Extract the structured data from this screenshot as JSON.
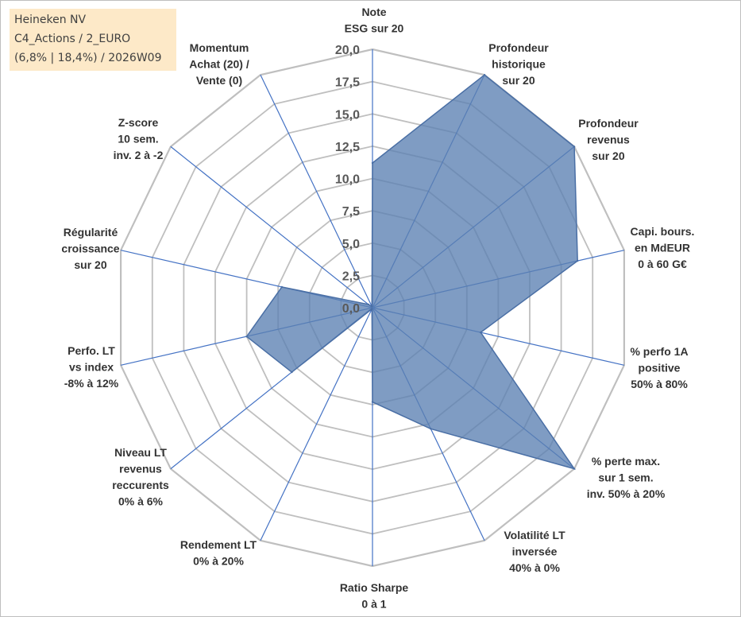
{
  "title_box": {
    "line1": "Heineken NV",
    "line2": "C4_Actions / 2_EURO",
    "line3": "(6,8% | 18,4%) / 2026W09"
  },
  "chart_data": {
    "type": "radar",
    "title": "Heineken NV",
    "range": [
      0,
      20
    ],
    "ticks": [
      "0,0",
      "2,5",
      "5,0",
      "7,5",
      "10,0",
      "12,5",
      "15,0",
      "17,5",
      "20,0"
    ],
    "tick_values": [
      0,
      2.5,
      5,
      7.5,
      10,
      12.5,
      15,
      17.5,
      20
    ],
    "axes": [
      {
        "label": [
          "Note",
          "ESG sur 20"
        ],
        "value": 11.2
      },
      {
        "label": [
          "Profondeur",
          "historique",
          "sur 20"
        ],
        "value": 20
      },
      {
        "label": [
          "Profondeur",
          "revenus",
          "sur 20"
        ],
        "value": 20
      },
      {
        "label": [
          "Capi. bours.",
          "en MdEUR",
          "0 à 60 G€"
        ],
        "value": 16.3
      },
      {
        "label": [
          "% perfo 1A",
          "positive",
          "50% à 80%"
        ],
        "value": 8.6
      },
      {
        "label": [
          "% perte max.",
          "sur 1 sem.",
          "inv. 50% à 20%"
        ],
        "value": 20
      },
      {
        "label": [
          "Volatilité LT",
          "inversée",
          "40% à 0%"
        ],
        "value": 10.4
      },
      {
        "label": [
          "Ratio Sharpe",
          "0 à 1"
        ],
        "value": 7.3
      },
      {
        "label": [
          "Rendement LT",
          "0% à 20%"
        ],
        "value": 0.1
      },
      {
        "label": [
          "Niveau LT",
          "revenus",
          "reccurents",
          "0% à 6%"
        ],
        "value": 8.0
      },
      {
        "label": [
          "Perfo. LT",
          "vs index",
          "-8% à 12%"
        ],
        "value": 10.0
      },
      {
        "label": [
          "Régularité",
          "croissance",
          "sur 20"
        ],
        "value": 7.2
      },
      {
        "label": [
          "Z-score",
          "10 sem.",
          "inv. 2 à -2"
        ],
        "value": 0.4
      },
      {
        "label": [
          "Momentum",
          "Achat (20) /",
          "Vente (0)"
        ],
        "value": 0.1
      }
    ],
    "series": [
      {
        "name": "Heineken NV",
        "color": "#5b80b2",
        "outline": "#4a6fa5"
      }
    ],
    "grid_color": "#bfbfbf",
    "axis_color": "#4472c4"
  }
}
